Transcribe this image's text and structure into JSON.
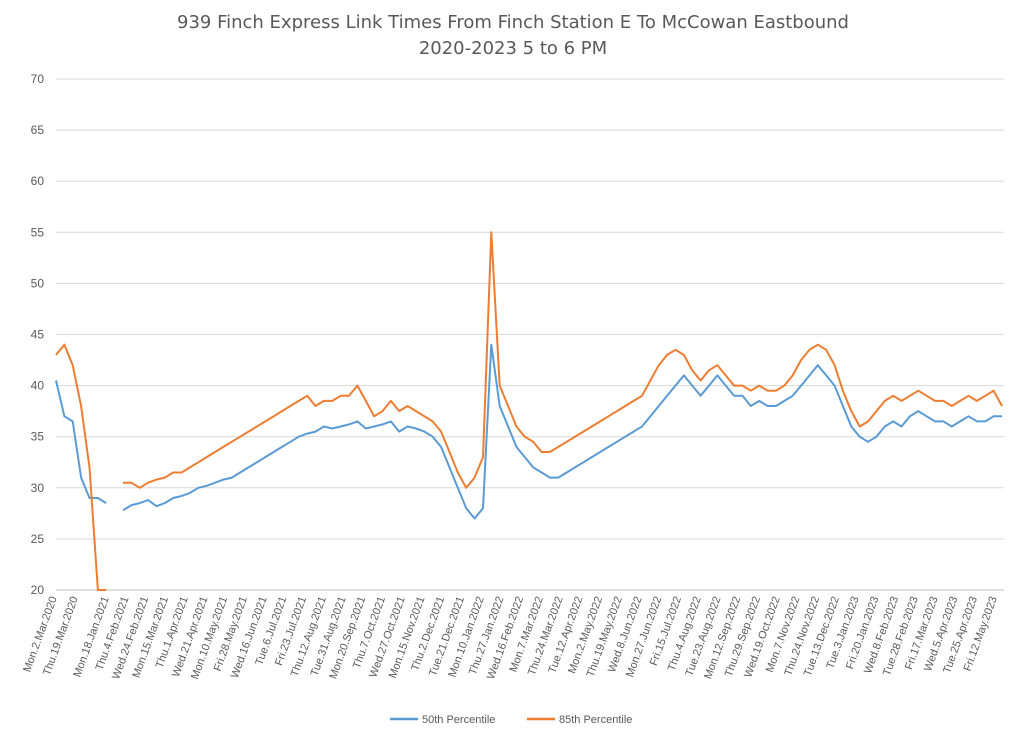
{
  "chart_data": {
    "type": "line",
    "title": "939 Finch Express Link Times From Finch Station E To McCowan Eastbound",
    "subtitle": "2020-2023 5 to 6 PM",
    "xlabel": "",
    "ylabel": "",
    "ylim": [
      20,
      70
    ],
    "yticks": [
      20,
      25,
      30,
      35,
      40,
      45,
      50,
      55,
      60,
      65,
      70
    ],
    "grid": true,
    "legend_position": "bottom",
    "x_tick_labels": [
      "Mon.2.Mar.2020",
      "Thu.19.Mar.2020",
      "Mon.18.Jan.2021",
      "Thu.4.Feb.2021",
      "Wed.24.Feb.2021",
      "Mon.15.Mar.2021",
      "Thu.1.Apr.2021",
      "Wed.21.Apr.2021",
      "Mon.10.May.2021",
      "Fri.28.May.2021",
      "Wed.16.Jun.2021",
      "Tue.6.Jul.2021",
      "Fri.23.Jul.2021",
      "Thu.12.Aug.2021",
      "Tue.31.Aug.2021",
      "Mon.20.Sep.2021",
      "Thu.7.Oct.2021",
      "Wed.27.Oct.2021",
      "Mon.15.Nov.2021",
      "Thu.2.Dec.2021",
      "Tue.21.Dec.2021",
      "Mon.10.Jan.2022",
      "Thu.27.Jan.2022",
      "Wed.16.Feb.2022",
      "Mon.7.Mar.2022",
      "Thu.24.Mar.2022",
      "Tue.12.Apr.2022",
      "Mon.2.May.2022",
      "Thu.19.May.2022",
      "Wed.8.Jun.2022",
      "Mon.27.Jun.2022",
      "Fri.15.Jul.2022",
      "Thu.4.Aug.2022",
      "Tue.23.Aug.2022",
      "Mon.12.Sep.2022",
      "Thu.29.Sep.2022",
      "Wed.19.Oct.2022",
      "Mon.7.Nov.2022",
      "Thu.24.Nov.2022",
      "Tue.13.Dec.2022",
      "Tue.3.Jan.2023",
      "Fri.20.Jan.2023",
      "Wed.8.Feb.2023",
      "Tue.28.Feb.2023",
      "Fri.17.Mar.2023",
      "Wed.5.Apr.2023",
      "Tue.25.Apr.2023",
      "Fri.12.May.2023"
    ],
    "series": [
      {
        "name": "50th Percentile",
        "color": "#5b9bd5",
        "values": [
          40.5,
          37,
          36.5,
          31,
          29,
          29,
          28.5,
          null,
          27.8,
          28.3,
          28.5,
          28.8,
          28.2,
          28.5,
          29,
          29.2,
          29.5,
          30,
          30.2,
          30.5,
          30.8,
          31,
          31.5,
          32,
          32.5,
          33,
          33.5,
          34,
          34.5,
          35,
          35.3,
          35.5,
          36,
          35.8,
          36,
          36.2,
          36.5,
          35.8,
          36,
          36.2,
          36.5,
          35.5,
          36,
          35.8,
          35.5,
          35,
          34,
          32,
          30,
          28,
          27,
          28,
          44,
          38,
          36,
          34,
          33,
          32,
          31.5,
          31,
          31,
          31.5,
          32,
          32.5,
          33,
          33.5,
          34,
          34.5,
          35,
          35.5,
          36,
          37,
          38,
          39,
          40,
          41,
          40,
          39,
          40,
          41,
          40,
          39,
          39,
          38,
          38.5,
          38,
          38,
          38.5,
          39,
          40,
          41,
          42,
          41,
          40,
          38,
          36,
          35,
          34.5,
          35,
          36,
          36.5,
          36,
          37,
          37.5,
          37,
          36.5,
          36.5,
          36,
          36.5,
          37,
          36.5,
          36.5,
          37,
          37
        ]
      },
      {
        "name": "85th Percentile",
        "color": "#ed7d31",
        "values": [
          43,
          44,
          42,
          38,
          32,
          20,
          20,
          null,
          30.5,
          30.5,
          30,
          30.5,
          30.8,
          31,
          31.5,
          31.5,
          32,
          32.5,
          33,
          33.5,
          34,
          34.5,
          35,
          35.5,
          36,
          36.5,
          37,
          37.5,
          38,
          38.5,
          39,
          38,
          38.5,
          38.5,
          39,
          39,
          40,
          38.5,
          37,
          37.5,
          38.5,
          37.5,
          38,
          37.5,
          37,
          36.5,
          35.5,
          33.5,
          31.5,
          30,
          31,
          33,
          55,
          40,
          38,
          36,
          35,
          34.5,
          33.5,
          33.5,
          34,
          34.5,
          35,
          35.5,
          36,
          36.5,
          37,
          37.5,
          38,
          38.5,
          39,
          40.5,
          42,
          43,
          43.5,
          43,
          41.5,
          40.5,
          41.5,
          42,
          41,
          40,
          40,
          39.5,
          40,
          39.5,
          39.5,
          40,
          41,
          42.5,
          43.5,
          44,
          43.5,
          42,
          39.5,
          37.5,
          36,
          36.5,
          37.5,
          38.5,
          39,
          38.5,
          39,
          39.5,
          39,
          38.5,
          38.5,
          38,
          38.5,
          39,
          38.5,
          39,
          39.5,
          38
        ]
      }
    ]
  }
}
